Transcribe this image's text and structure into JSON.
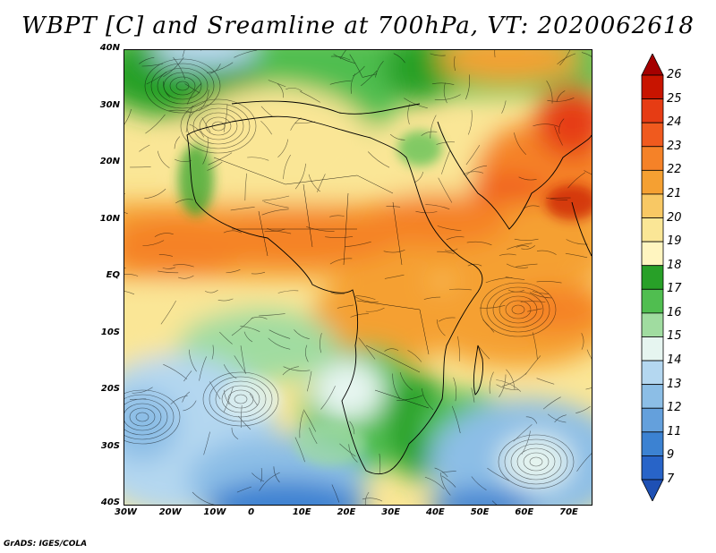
{
  "title": "WBPT [C] and Sreamline at 700hPa, VT: 2020062618",
  "footer": "GrADS: IGES/COLA",
  "map": {
    "variable": "Wet-bulb potential temperature",
    "units": "C",
    "level": "700hPa",
    "valid_time": "2020062618",
    "lat_labels": [
      "40N",
      "30N",
      "20N",
      "10N",
      "EQ",
      "10S",
      "20S",
      "30S",
      "40S"
    ],
    "lat_values": [
      40,
      30,
      20,
      10,
      0,
      -10,
      -20,
      -30,
      -40
    ],
    "lon_labels": [
      "30W",
      "20W",
      "10W",
      "0",
      "10E",
      "20E",
      "30E",
      "40E",
      "50E",
      "60E",
      "70E"
    ],
    "lon_values": [
      -30,
      -20,
      -10,
      0,
      10,
      20,
      30,
      40,
      50,
      60,
      70
    ]
  },
  "colorbar": {
    "labels": [
      "26",
      "25",
      "24",
      "23",
      "22",
      "21",
      "20",
      "19",
      "18",
      "17",
      "16",
      "15",
      "14",
      "13",
      "12",
      "11",
      "9",
      "7"
    ],
    "colors": [
      "#a50000",
      "#c81400",
      "#e63c14",
      "#f05a1e",
      "#f58228",
      "#f5a032",
      "#f8c864",
      "#fae696",
      "#fff5c0",
      "#28a028",
      "#50be50",
      "#a0dca0",
      "#e6f5f0",
      "#b4d7f0",
      "#8cbee6",
      "#64a0dc",
      "#3c82d2",
      "#2864c8",
      "#1e50b4"
    ]
  }
}
